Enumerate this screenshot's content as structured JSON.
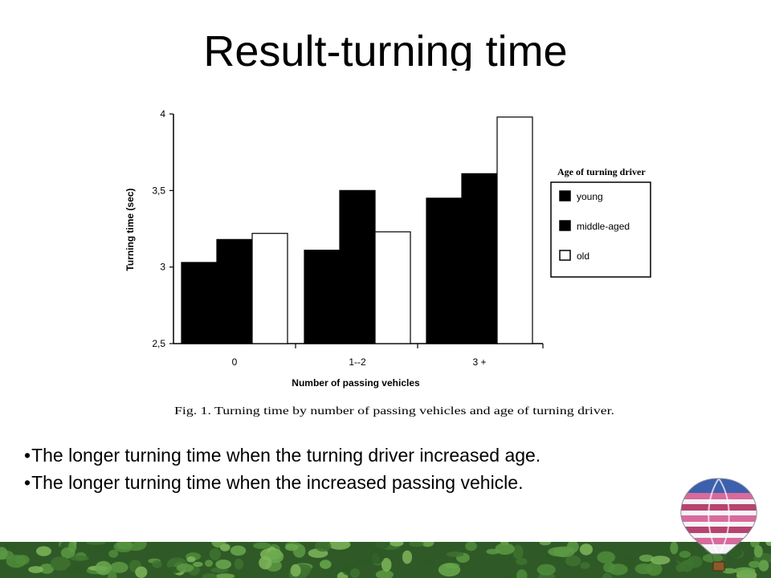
{
  "slide": {
    "title": "Result-turning time"
  },
  "chart_data": {
    "type": "bar",
    "categories": [
      "0",
      "1--2",
      "3 +"
    ],
    "series": [
      {
        "name": "young",
        "values": [
          3.03,
          3.11,
          3.45
        ],
        "fill": "#000000"
      },
      {
        "name": "middle-aged",
        "values": [
          3.18,
          3.5,
          3.61
        ],
        "fill": "#000000"
      },
      {
        "name": "old",
        "values": [
          3.22,
          3.23,
          3.98
        ],
        "fill": "#ffffff"
      }
    ],
    "xlabel": "Number of passing vehicles",
    "ylabel": "Turning time (sec)",
    "ylim": [
      2.5,
      4
    ],
    "yticks": [
      {
        "value": 2.5,
        "label": "2,5"
      },
      {
        "value": 3,
        "label": "3"
      },
      {
        "value": 3.5,
        "label": "3,5"
      },
      {
        "value": 4,
        "label": "4"
      }
    ],
    "legend_title": "Age of turning driver",
    "legend_position": "right",
    "caption": "Fig. 1. Turning time by number of passing vehicles and age of turning driver.",
    "grid": false
  },
  "bullets": [
    "The longer turning time when the turning driver increased age.",
    "The longer turning time when the increased passing vehicle."
  ],
  "bullet_glyph": "•",
  "decor": {
    "trees": "tree-band",
    "balloon": "hot-air-balloon"
  }
}
